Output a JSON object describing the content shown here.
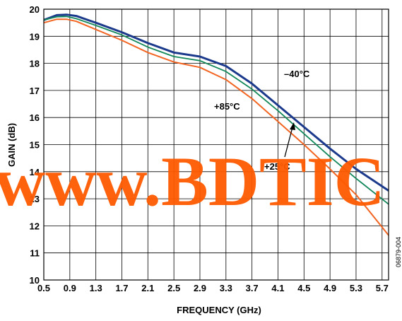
{
  "chart_data": {
    "type": "line",
    "xlabel": "FREQUENCY (GHz)",
    "ylabel": "GAIN (dB)",
    "xlim": [
      0.5,
      5.8
    ],
    "ylim": [
      10,
      20
    ],
    "x_ticks": [
      "0.5",
      "0.9",
      "1.3",
      "1.7",
      "2.1",
      "2.5",
      "2.9",
      "3.3",
      "3.7",
      "4.1",
      "4.5",
      "4.9",
      "5.3",
      "5.7"
    ],
    "x_tick_values": [
      0.5,
      0.9,
      1.3,
      1.7,
      2.1,
      2.5,
      2.9,
      3.3,
      3.7,
      4.1,
      4.5,
      4.9,
      5.3,
      5.7
    ],
    "y_ticks": [
      "10",
      "11",
      "12",
      "13",
      "14",
      "15",
      "16",
      "17",
      "18",
      "19",
      "20"
    ],
    "y_tick_values": [
      10,
      11,
      12,
      13,
      14,
      15,
      16,
      17,
      18,
      19,
      20
    ],
    "grid": true,
    "series": [
      {
        "name": "–40°C",
        "color": "#1c3a8c",
        "x": [
          0.5,
          0.7,
          0.85,
          1.0,
          1.3,
          1.7,
          2.1,
          2.5,
          2.9,
          3.3,
          3.7,
          4.1,
          4.5,
          4.9,
          5.3,
          5.8
        ],
        "y": [
          19.6,
          19.78,
          19.8,
          19.75,
          19.5,
          19.15,
          18.75,
          18.4,
          18.25,
          17.9,
          17.25,
          16.45,
          15.65,
          14.85,
          14.1,
          13.3
        ]
      },
      {
        "name": "+25°C",
        "color": "#13885a",
        "x": [
          0.5,
          0.7,
          0.85,
          1.0,
          1.3,
          1.7,
          2.1,
          2.5,
          2.9,
          3.3,
          3.7,
          4.1,
          4.5,
          4.9,
          5.3,
          5.8
        ],
        "y": [
          19.6,
          19.72,
          19.73,
          19.65,
          19.4,
          19.05,
          18.6,
          18.25,
          18.1,
          17.7,
          17.05,
          16.25,
          15.4,
          14.55,
          13.75,
          12.8
        ]
      },
      {
        "name": "+85°C",
        "color": "#f26522",
        "x": [
          0.5,
          0.7,
          0.85,
          1.0,
          1.3,
          1.7,
          2.1,
          2.5,
          2.9,
          3.3,
          3.7,
          4.1,
          4.5,
          4.9,
          5.3,
          5.8
        ],
        "y": [
          19.5,
          19.63,
          19.63,
          19.55,
          19.25,
          18.85,
          18.4,
          18.05,
          17.85,
          17.4,
          16.7,
          15.85,
          15.0,
          14.1,
          13.15,
          11.65
        ]
      }
    ],
    "annotations": [
      {
        "text": "–40°C"
      },
      {
        "text": "+85°C"
      },
      {
        "text": "+25°C"
      }
    ],
    "figure_id": "06879-004",
    "watermark": "www.BDTIC"
  }
}
